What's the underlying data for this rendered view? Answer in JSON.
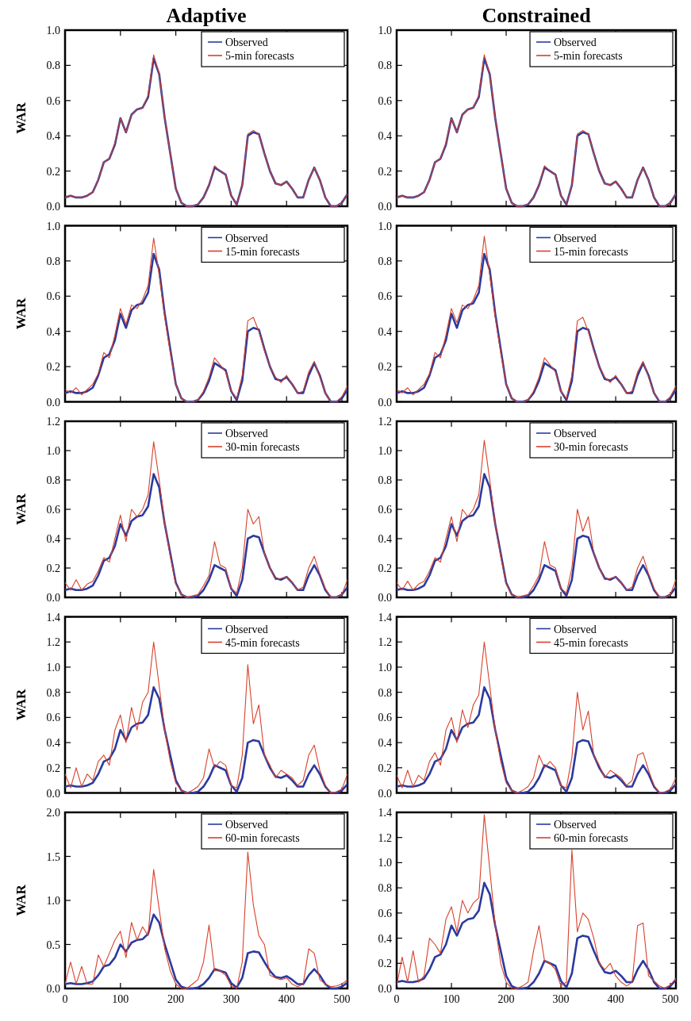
{
  "chart_data": [
    {
      "type": "line",
      "title": "Adaptive",
      "ylabel": "WAR",
      "x": [
        0,
        10,
        20,
        30,
        40,
        50,
        60,
        70,
        80,
        90,
        100,
        110,
        120,
        130,
        140,
        150,
        160,
        170,
        180,
        190,
        200,
        210,
        220,
        230,
        240,
        250,
        260,
        270,
        280,
        290,
        300,
        310,
        320,
        330,
        340,
        350,
        360,
        370,
        380,
        390,
        400,
        410,
        420,
        430,
        440,
        450,
        460,
        470,
        480,
        490,
        500,
        510
      ],
      "xlim": [
        0,
        510
      ],
      "xticks": [
        0,
        100,
        200,
        300,
        400,
        500
      ],
      "ylim": [
        0,
        1.0
      ],
      "yticks": [
        {
          "value": 0,
          "label": "0.0"
        },
        {
          "value": 0.2,
          "label": "0.2"
        },
        {
          "value": 0.4,
          "label": "0.4"
        },
        {
          "value": 0.6,
          "label": "0.6"
        },
        {
          "value": 0.8,
          "label": "0.8"
        },
        {
          "value": 1,
          "label": "1.0"
        }
      ],
      "tick_labels": "y",
      "legend": "top right",
      "series": [
        {
          "name": "Observed",
          "color": "#2b3a9e",
          "values": [
            0.05,
            0.06,
            0.05,
            0.05,
            0.06,
            0.08,
            0.15,
            0.25,
            0.27,
            0.35,
            0.5,
            0.42,
            0.52,
            0.55,
            0.56,
            0.62,
            0.84,
            0.75,
            0.5,
            0.3,
            0.1,
            0.02,
            0.0,
            0.0,
            0.01,
            0.05,
            0.12,
            0.22,
            0.2,
            0.18,
            0.06,
            0.01,
            0.12,
            0.4,
            0.42,
            0.41,
            0.3,
            0.2,
            0.13,
            0.12,
            0.14,
            0.1,
            0.05,
            0.05,
            0.15,
            0.22,
            0.15,
            0.05,
            0.0,
            0.0,
            0.02,
            0.07
          ]
        },
        {
          "name": "5-min forecasts",
          "color": "#d8412a",
          "values": [
            0.05,
            0.06,
            0.05,
            0.05,
            0.06,
            0.08,
            0.15,
            0.25,
            0.27,
            0.36,
            0.5,
            0.42,
            0.52,
            0.55,
            0.56,
            0.63,
            0.86,
            0.75,
            0.5,
            0.3,
            0.1,
            0.02,
            0.0,
            0.0,
            0.01,
            0.05,
            0.12,
            0.23,
            0.2,
            0.18,
            0.06,
            0.01,
            0.12,
            0.41,
            0.43,
            0.41,
            0.3,
            0.2,
            0.13,
            0.12,
            0.14,
            0.1,
            0.05,
            0.05,
            0.15,
            0.22,
            0.15,
            0.05,
            0.0,
            0.0,
            0.02,
            0.07
          ]
        }
      ]
    },
    {
      "type": "line",
      "title": "Constrained",
      "x": [
        0,
        10,
        20,
        30,
        40,
        50,
        60,
        70,
        80,
        90,
        100,
        110,
        120,
        130,
        140,
        150,
        160,
        170,
        180,
        190,
        200,
        210,
        220,
        230,
        240,
        250,
        260,
        270,
        280,
        290,
        300,
        310,
        320,
        330,
        340,
        350,
        360,
        370,
        380,
        390,
        400,
        410,
        420,
        430,
        440,
        450,
        460,
        470,
        480,
        490,
        500,
        510
      ],
      "xlim": [
        0,
        510
      ],
      "xticks": [
        0,
        100,
        200,
        300,
        400,
        500
      ],
      "ylim": [
        0,
        1.0
      ],
      "yticks": [
        {
          "value": 0,
          "label": "0.0"
        },
        {
          "value": 0.2,
          "label": "0.2"
        },
        {
          "value": 0.4,
          "label": "0.4"
        },
        {
          "value": 0.6,
          "label": "0.6"
        },
        {
          "value": 0.8,
          "label": "0.8"
        },
        {
          "value": 1,
          "label": "1.0"
        }
      ],
      "tick_labels": "y",
      "legend": "top right",
      "series": [
        {
          "name": "Observed",
          "color": "#2b3a9e",
          "values": [
            0.05,
            0.06,
            0.05,
            0.05,
            0.06,
            0.08,
            0.15,
            0.25,
            0.27,
            0.35,
            0.5,
            0.42,
            0.52,
            0.55,
            0.56,
            0.62,
            0.84,
            0.75,
            0.5,
            0.3,
            0.1,
            0.02,
            0.0,
            0.0,
            0.01,
            0.05,
            0.12,
            0.22,
            0.2,
            0.18,
            0.06,
            0.01,
            0.12,
            0.4,
            0.42,
            0.41,
            0.3,
            0.2,
            0.13,
            0.12,
            0.14,
            0.1,
            0.05,
            0.05,
            0.15,
            0.22,
            0.15,
            0.05,
            0.0,
            0.0,
            0.02,
            0.07
          ]
        },
        {
          "name": "5-min forecasts",
          "color": "#d8412a",
          "values": [
            0.05,
            0.06,
            0.05,
            0.05,
            0.06,
            0.08,
            0.15,
            0.25,
            0.27,
            0.36,
            0.5,
            0.42,
            0.52,
            0.55,
            0.56,
            0.63,
            0.86,
            0.75,
            0.5,
            0.3,
            0.1,
            0.02,
            0.0,
            0.0,
            0.01,
            0.05,
            0.12,
            0.23,
            0.2,
            0.18,
            0.06,
            0.01,
            0.12,
            0.41,
            0.43,
            0.41,
            0.3,
            0.2,
            0.13,
            0.12,
            0.14,
            0.1,
            0.05,
            0.05,
            0.15,
            0.22,
            0.15,
            0.05,
            0.0,
            0.0,
            0.02,
            0.07
          ]
        }
      ]
    },
    {
      "type": "line",
      "ylabel": "WAR",
      "x": [
        0,
        10,
        20,
        30,
        40,
        50,
        60,
        70,
        80,
        90,
        100,
        110,
        120,
        130,
        140,
        150,
        160,
        170,
        180,
        190,
        200,
        210,
        220,
        230,
        240,
        250,
        260,
        270,
        280,
        290,
        300,
        310,
        320,
        330,
        340,
        350,
        360,
        370,
        380,
        390,
        400,
        410,
        420,
        430,
        440,
        450,
        460,
        470,
        480,
        490,
        500,
        510
      ],
      "xlim": [
        0,
        510
      ],
      "xticks": [
        0,
        100,
        200,
        300,
        400,
        500
      ],
      "ylim": [
        0,
        1.0
      ],
      "yticks": [
        {
          "value": 0,
          "label": "0.0"
        },
        {
          "value": 0.2,
          "label": "0.2"
        },
        {
          "value": 0.4,
          "label": "0.4"
        },
        {
          "value": 0.6,
          "label": "0.6"
        },
        {
          "value": 0.8,
          "label": "0.8"
        },
        {
          "value": 1,
          "label": "1.0"
        }
      ],
      "tick_labels": "y",
      "legend": "top right",
      "series": [
        {
          "name": "Observed",
          "color": "#2b3a9e",
          "values": [
            0.05,
            0.06,
            0.05,
            0.05,
            0.06,
            0.08,
            0.15,
            0.25,
            0.27,
            0.35,
            0.5,
            0.42,
            0.52,
            0.55,
            0.56,
            0.62,
            0.84,
            0.75,
            0.5,
            0.3,
            0.1,
            0.02,
            0.0,
            0.0,
            0.01,
            0.05,
            0.12,
            0.22,
            0.2,
            0.18,
            0.06,
            0.01,
            0.12,
            0.4,
            0.42,
            0.41,
            0.3,
            0.2,
            0.13,
            0.12,
            0.14,
            0.1,
            0.05,
            0.05,
            0.15,
            0.22,
            0.15,
            0.05,
            0.0,
            0.0,
            0.02,
            0.07
          ]
        },
        {
          "name": "15-min forecasts",
          "color": "#d8412a",
          "values": [
            0.07,
            0.05,
            0.08,
            0.04,
            0.07,
            0.1,
            0.16,
            0.28,
            0.25,
            0.38,
            0.53,
            0.44,
            0.55,
            0.53,
            0.58,
            0.66,
            0.93,
            0.72,
            0.48,
            0.28,
            0.1,
            0.02,
            0.0,
            0.0,
            0.01,
            0.06,
            0.14,
            0.25,
            0.21,
            0.17,
            0.06,
            0.02,
            0.15,
            0.46,
            0.48,
            0.4,
            0.29,
            0.2,
            0.14,
            0.11,
            0.15,
            0.1,
            0.05,
            0.06,
            0.17,
            0.23,
            0.14,
            0.05,
            0.0,
            0.0,
            0.03,
            0.09
          ]
        }
      ]
    },
    {
      "type": "line",
      "x": [
        0,
        10,
        20,
        30,
        40,
        50,
        60,
        70,
        80,
        90,
        100,
        110,
        120,
        130,
        140,
        150,
        160,
        170,
        180,
        190,
        200,
        210,
        220,
        230,
        240,
        250,
        260,
        270,
        280,
        290,
        300,
        310,
        320,
        330,
        340,
        350,
        360,
        370,
        380,
        390,
        400,
        410,
        420,
        430,
        440,
        450,
        460,
        470,
        480,
        490,
        500,
        510
      ],
      "xlim": [
        0,
        510
      ],
      "xticks": [
        0,
        100,
        200,
        300,
        400,
        500
      ],
      "ylim": [
        0,
        1.0
      ],
      "yticks": [
        {
          "value": 0,
          "label": "0.0"
        },
        {
          "value": 0.2,
          "label": "0.2"
        },
        {
          "value": 0.4,
          "label": "0.4"
        },
        {
          "value": 0.6,
          "label": "0.6"
        },
        {
          "value": 0.8,
          "label": "0.8"
        },
        {
          "value": 1,
          "label": "1.0"
        }
      ],
      "tick_labels": "y",
      "legend": "top right",
      "series": [
        {
          "name": "Observed",
          "color": "#2b3a9e",
          "values": [
            0.05,
            0.06,
            0.05,
            0.05,
            0.06,
            0.08,
            0.15,
            0.25,
            0.27,
            0.35,
            0.5,
            0.42,
            0.52,
            0.55,
            0.56,
            0.62,
            0.84,
            0.75,
            0.5,
            0.3,
            0.1,
            0.02,
            0.0,
            0.0,
            0.01,
            0.05,
            0.12,
            0.22,
            0.2,
            0.18,
            0.06,
            0.01,
            0.12,
            0.4,
            0.42,
            0.41,
            0.3,
            0.2,
            0.13,
            0.12,
            0.14,
            0.1,
            0.05,
            0.05,
            0.15,
            0.22,
            0.15,
            0.05,
            0.0,
            0.0,
            0.02,
            0.07
          ]
        },
        {
          "name": "15-min forecasts",
          "color": "#d8412a",
          "values": [
            0.07,
            0.05,
            0.08,
            0.04,
            0.07,
            0.1,
            0.16,
            0.28,
            0.25,
            0.38,
            0.53,
            0.45,
            0.55,
            0.53,
            0.58,
            0.66,
            0.94,
            0.72,
            0.48,
            0.28,
            0.1,
            0.02,
            0.0,
            0.0,
            0.01,
            0.06,
            0.14,
            0.25,
            0.21,
            0.17,
            0.06,
            0.02,
            0.15,
            0.46,
            0.48,
            0.4,
            0.29,
            0.2,
            0.14,
            0.11,
            0.15,
            0.1,
            0.05,
            0.06,
            0.17,
            0.23,
            0.14,
            0.05,
            0.0,
            0.0,
            0.03,
            0.09
          ]
        }
      ]
    },
    {
      "type": "line",
      "ylabel": "WAR",
      "x": [
        0,
        10,
        20,
        30,
        40,
        50,
        60,
        70,
        80,
        90,
        100,
        110,
        120,
        130,
        140,
        150,
        160,
        170,
        180,
        190,
        200,
        210,
        220,
        230,
        240,
        250,
        260,
        270,
        280,
        290,
        300,
        310,
        320,
        330,
        340,
        350,
        360,
        370,
        380,
        390,
        400,
        410,
        420,
        430,
        440,
        450,
        460,
        470,
        480,
        490,
        500,
        510
      ],
      "xlim": [
        0,
        510
      ],
      "xticks": [
        0,
        100,
        200,
        300,
        400,
        500
      ],
      "ylim": [
        0,
        1.2
      ],
      "yticks": [
        {
          "value": 0,
          "label": "0.0"
        },
        {
          "value": 0.2,
          "label": "0.2"
        },
        {
          "value": 0.4,
          "label": "0.4"
        },
        {
          "value": 0.6,
          "label": "0.6"
        },
        {
          "value": 0.8,
          "label": "0.8"
        },
        {
          "value": 1,
          "label": "1.0"
        },
        {
          "value": 1.2,
          "label": "1.2"
        }
      ],
      "tick_labels": "y",
      "legend": "top right",
      "series": [
        {
          "name": "Observed",
          "color": "#2b3a9e",
          "values": [
            0.05,
            0.06,
            0.05,
            0.05,
            0.06,
            0.08,
            0.15,
            0.25,
            0.27,
            0.35,
            0.5,
            0.42,
            0.52,
            0.55,
            0.56,
            0.62,
            0.84,
            0.75,
            0.5,
            0.3,
            0.1,
            0.02,
            0.0,
            0.0,
            0.01,
            0.05,
            0.12,
            0.22,
            0.2,
            0.18,
            0.06,
            0.01,
            0.12,
            0.4,
            0.42,
            0.41,
            0.3,
            0.2,
            0.13,
            0.12,
            0.14,
            0.1,
            0.05,
            0.05,
            0.15,
            0.22,
            0.15,
            0.05,
            0.0,
            0.0,
            0.02,
            0.07
          ]
        },
        {
          "name": "30-min forecasts",
          "color": "#d8412a",
          "values": [
            0.1,
            0.05,
            0.12,
            0.05,
            0.09,
            0.11,
            0.18,
            0.27,
            0.24,
            0.4,
            0.56,
            0.38,
            0.6,
            0.55,
            0.6,
            0.7,
            1.06,
            0.8,
            0.5,
            0.28,
            0.09,
            0.02,
            0.0,
            0.01,
            0.02,
            0.08,
            0.15,
            0.38,
            0.22,
            0.2,
            0.06,
            0.03,
            0.2,
            0.6,
            0.5,
            0.55,
            0.3,
            0.2,
            0.12,
            0.13,
            0.14,
            0.1,
            0.05,
            0.07,
            0.2,
            0.28,
            0.16,
            0.06,
            0.0,
            0.0,
            0.02,
            0.12
          ]
        }
      ]
    },
    {
      "type": "line",
      "x": [
        0,
        10,
        20,
        30,
        40,
        50,
        60,
        70,
        80,
        90,
        100,
        110,
        120,
        130,
        140,
        150,
        160,
        170,
        180,
        190,
        200,
        210,
        220,
        230,
        240,
        250,
        260,
        270,
        280,
        290,
        300,
        310,
        320,
        330,
        340,
        350,
        360,
        370,
        380,
        390,
        400,
        410,
        420,
        430,
        440,
        450,
        460,
        470,
        480,
        490,
        500,
        510
      ],
      "xlim": [
        0,
        510
      ],
      "xticks": [
        0,
        100,
        200,
        300,
        400,
        500
      ],
      "ylim": [
        0,
        1.2
      ],
      "yticks": [
        {
          "value": 0,
          "label": "0.0"
        },
        {
          "value": 0.2,
          "label": "0.2"
        },
        {
          "value": 0.4,
          "label": "0.4"
        },
        {
          "value": 0.6,
          "label": "0.6"
        },
        {
          "value": 0.8,
          "label": "0.8"
        },
        {
          "value": 1,
          "label": "1.0"
        },
        {
          "value": 1.2,
          "label": "1.2"
        }
      ],
      "tick_labels": "y",
      "legend": "top right",
      "series": [
        {
          "name": "Observed",
          "color": "#2b3a9e",
          "values": [
            0.05,
            0.06,
            0.05,
            0.05,
            0.06,
            0.08,
            0.15,
            0.25,
            0.27,
            0.35,
            0.5,
            0.42,
            0.52,
            0.55,
            0.56,
            0.62,
            0.84,
            0.75,
            0.5,
            0.3,
            0.1,
            0.02,
            0.0,
            0.0,
            0.01,
            0.05,
            0.12,
            0.22,
            0.2,
            0.18,
            0.06,
            0.01,
            0.12,
            0.4,
            0.42,
            0.41,
            0.3,
            0.2,
            0.13,
            0.12,
            0.14,
            0.1,
            0.05,
            0.05,
            0.15,
            0.22,
            0.15,
            0.05,
            0.0,
            0.0,
            0.02,
            0.07
          ]
        },
        {
          "name": "30-min forecasts",
          "color": "#d8412a",
          "values": [
            0.1,
            0.05,
            0.11,
            0.05,
            0.09,
            0.11,
            0.18,
            0.27,
            0.24,
            0.4,
            0.55,
            0.38,
            0.6,
            0.55,
            0.6,
            0.7,
            1.07,
            0.8,
            0.5,
            0.28,
            0.09,
            0.02,
            0.0,
            0.01,
            0.02,
            0.08,
            0.15,
            0.38,
            0.22,
            0.2,
            0.06,
            0.03,
            0.2,
            0.6,
            0.45,
            0.55,
            0.3,
            0.2,
            0.12,
            0.13,
            0.14,
            0.1,
            0.05,
            0.07,
            0.2,
            0.28,
            0.16,
            0.06,
            0.0,
            0.0,
            0.02,
            0.12
          ]
        }
      ]
    },
    {
      "type": "line",
      "ylabel": "WAR",
      "x": [
        0,
        10,
        20,
        30,
        40,
        50,
        60,
        70,
        80,
        90,
        100,
        110,
        120,
        130,
        140,
        150,
        160,
        170,
        180,
        190,
        200,
        210,
        220,
        230,
        240,
        250,
        260,
        270,
        280,
        290,
        300,
        310,
        320,
        330,
        340,
        350,
        360,
        370,
        380,
        390,
        400,
        410,
        420,
        430,
        440,
        450,
        460,
        470,
        480,
        490,
        500,
        510
      ],
      "xlim": [
        0,
        510
      ],
      "xticks": [
        0,
        100,
        200,
        300,
        400,
        500
      ],
      "ylim": [
        0,
        1.4
      ],
      "yticks": [
        {
          "value": 0,
          "label": "0.0"
        },
        {
          "value": 0.2,
          "label": "0.2"
        },
        {
          "value": 0.4,
          "label": "0.4"
        },
        {
          "value": 0.6,
          "label": "0.6"
        },
        {
          "value": 0.8,
          "label": "0.8"
        },
        {
          "value": 1,
          "label": "1.0"
        },
        {
          "value": 1.2,
          "label": "1.2"
        },
        {
          "value": 1.4,
          "label": "1.4"
        }
      ],
      "tick_labels": "y",
      "legend": "top right",
      "series": [
        {
          "name": "Observed",
          "color": "#2b3a9e",
          "values": [
            0.05,
            0.06,
            0.05,
            0.05,
            0.06,
            0.08,
            0.15,
            0.25,
            0.27,
            0.35,
            0.5,
            0.42,
            0.52,
            0.55,
            0.56,
            0.62,
            0.84,
            0.75,
            0.5,
            0.3,
            0.1,
            0.02,
            0.0,
            0.0,
            0.01,
            0.05,
            0.12,
            0.22,
            0.2,
            0.18,
            0.06,
            0.01,
            0.12,
            0.4,
            0.42,
            0.41,
            0.3,
            0.2,
            0.13,
            0.12,
            0.14,
            0.1,
            0.05,
            0.05,
            0.15,
            0.22,
            0.15,
            0.05,
            0.0,
            0.0,
            0.02,
            0.07
          ]
        },
        {
          "name": "45-min forecasts",
          "color": "#d8412a",
          "values": [
            0.15,
            0.04,
            0.2,
            0.05,
            0.15,
            0.1,
            0.25,
            0.3,
            0.22,
            0.5,
            0.62,
            0.4,
            0.68,
            0.5,
            0.72,
            0.8,
            1.2,
            0.85,
            0.5,
            0.25,
            0.08,
            0.02,
            0.0,
            0.02,
            0.05,
            0.12,
            0.35,
            0.2,
            0.25,
            0.22,
            0.06,
            0.04,
            0.3,
            1.02,
            0.55,
            0.7,
            0.3,
            0.22,
            0.12,
            0.18,
            0.15,
            0.12,
            0.06,
            0.1,
            0.3,
            0.38,
            0.18,
            0.06,
            0.0,
            0.01,
            0.03,
            0.15
          ]
        }
      ]
    },
    {
      "type": "line",
      "x": [
        0,
        10,
        20,
        30,
        40,
        50,
        60,
        70,
        80,
        90,
        100,
        110,
        120,
        130,
        140,
        150,
        160,
        170,
        180,
        190,
        200,
        210,
        220,
        230,
        240,
        250,
        260,
        270,
        280,
        290,
        300,
        310,
        320,
        330,
        340,
        350,
        360,
        370,
        380,
        390,
        400,
        410,
        420,
        430,
        440,
        450,
        460,
        470,
        480,
        490,
        500,
        510
      ],
      "xlim": [
        0,
        510
      ],
      "xticks": [
        0,
        100,
        200,
        300,
        400,
        500
      ],
      "ylim": [
        0,
        1.4
      ],
      "yticks": [
        {
          "value": 0,
          "label": "0.0"
        },
        {
          "value": 0.2,
          "label": "0.2"
        },
        {
          "value": 0.4,
          "label": "0.4"
        },
        {
          "value": 0.6,
          "label": "0.6"
        },
        {
          "value": 0.8,
          "label": "0.8"
        },
        {
          "value": 1,
          "label": "1.0"
        },
        {
          "value": 1.2,
          "label": "1.2"
        },
        {
          "value": 1.4,
          "label": "1.4"
        }
      ],
      "tick_labels": "y",
      "legend": "top right",
      "series": [
        {
          "name": "Observed",
          "color": "#2b3a9e",
          "values": [
            0.05,
            0.06,
            0.05,
            0.05,
            0.06,
            0.08,
            0.15,
            0.25,
            0.27,
            0.35,
            0.5,
            0.42,
            0.52,
            0.55,
            0.56,
            0.62,
            0.84,
            0.75,
            0.5,
            0.3,
            0.1,
            0.02,
            0.0,
            0.0,
            0.01,
            0.05,
            0.12,
            0.22,
            0.2,
            0.18,
            0.06,
            0.01,
            0.12,
            0.4,
            0.42,
            0.41,
            0.3,
            0.2,
            0.13,
            0.12,
            0.14,
            0.1,
            0.05,
            0.05,
            0.15,
            0.22,
            0.15,
            0.05,
            0.0,
            0.0,
            0.02,
            0.07
          ]
        },
        {
          "name": "45-min forecasts",
          "color": "#d8412a",
          "values": [
            0.14,
            0.04,
            0.18,
            0.05,
            0.14,
            0.1,
            0.25,
            0.32,
            0.22,
            0.5,
            0.6,
            0.4,
            0.66,
            0.52,
            0.7,
            0.78,
            1.2,
            0.85,
            0.5,
            0.25,
            0.08,
            0.02,
            0.0,
            0.02,
            0.05,
            0.12,
            0.3,
            0.2,
            0.25,
            0.2,
            0.06,
            0.04,
            0.28,
            0.8,
            0.5,
            0.65,
            0.3,
            0.22,
            0.12,
            0.18,
            0.15,
            0.12,
            0.06,
            0.1,
            0.3,
            0.32,
            0.18,
            0.06,
            0.0,
            0.01,
            0.03,
            0.12
          ]
        }
      ]
    },
    {
      "type": "line",
      "ylabel": "WAR",
      "x": [
        0,
        10,
        20,
        30,
        40,
        50,
        60,
        70,
        80,
        90,
        100,
        110,
        120,
        130,
        140,
        150,
        160,
        170,
        180,
        190,
        200,
        210,
        220,
        230,
        240,
        250,
        260,
        270,
        280,
        290,
        300,
        310,
        320,
        330,
        340,
        350,
        360,
        370,
        380,
        390,
        400,
        410,
        420,
        430,
        440,
        450,
        460,
        470,
        480,
        490,
        500,
        510
      ],
      "xlim": [
        0,
        510
      ],
      "xticks": [
        0,
        100,
        200,
        300,
        400,
        500
      ],
      "ylim": [
        0,
        2.0
      ],
      "yticks": [
        {
          "value": 0,
          "label": "0.0"
        },
        {
          "value": 0.5,
          "label": "0.5"
        },
        {
          "value": 1,
          "label": "1.0"
        },
        {
          "value": 1.5,
          "label": "1.5"
        },
        {
          "value": 2,
          "label": "2.0"
        }
      ],
      "legend": "top right",
      "series": [
        {
          "name": "Observed",
          "color": "#2b3a9e",
          "values": [
            0.05,
            0.06,
            0.05,
            0.05,
            0.06,
            0.08,
            0.15,
            0.25,
            0.27,
            0.35,
            0.5,
            0.42,
            0.52,
            0.55,
            0.56,
            0.62,
            0.84,
            0.75,
            0.5,
            0.3,
            0.1,
            0.02,
            0.0,
            0.0,
            0.01,
            0.05,
            0.12,
            0.22,
            0.2,
            0.18,
            0.06,
            0.01,
            0.12,
            0.4,
            0.42,
            0.41,
            0.3,
            0.2,
            0.13,
            0.12,
            0.14,
            0.1,
            0.05,
            0.05,
            0.15,
            0.22,
            0.15,
            0.05,
            0.0,
            0.0,
            0.02,
            0.07
          ]
        },
        {
          "name": "60-min forecasts",
          "color": "#d8412a",
          "values": [
            0.05,
            0.3,
            0.05,
            0.25,
            0.05,
            0.05,
            0.38,
            0.25,
            0.4,
            0.55,
            0.65,
            0.35,
            0.75,
            0.55,
            0.7,
            0.6,
            1.35,
            0.9,
            0.45,
            0.2,
            0.05,
            0.0,
            0.0,
            0.05,
            0.1,
            0.3,
            0.72,
            0.2,
            0.2,
            0.15,
            0.03,
            0.0,
            0.3,
            1.55,
            0.95,
            0.6,
            0.5,
            0.15,
            0.12,
            0.1,
            0.12,
            0.05,
            0.02,
            0.05,
            0.45,
            0.4,
            0.1,
            0.05,
            0.02,
            0.03,
            0.05,
            0.1
          ]
        }
      ]
    },
    {
      "type": "line",
      "x": [
        0,
        10,
        20,
        30,
        40,
        50,
        60,
        70,
        80,
        90,
        100,
        110,
        120,
        130,
        140,
        150,
        160,
        170,
        180,
        190,
        200,
        210,
        220,
        230,
        240,
        250,
        260,
        270,
        280,
        290,
        300,
        310,
        320,
        330,
        340,
        350,
        360,
        370,
        380,
        390,
        400,
        410,
        420,
        430,
        440,
        450,
        460,
        470,
        480,
        490,
        500,
        510
      ],
      "xlim": [
        0,
        510
      ],
      "xticks": [
        0,
        100,
        200,
        300,
        400,
        500
      ],
      "ylim": [
        0,
        1.4
      ],
      "yticks": [
        {
          "value": 0,
          "label": "0.0"
        },
        {
          "value": 0.2,
          "label": "0.2"
        },
        {
          "value": 0.4,
          "label": "0.4"
        },
        {
          "value": 0.6,
          "label": "0.6"
        },
        {
          "value": 0.8,
          "label": "0.8"
        },
        {
          "value": 1,
          "label": "1.0"
        },
        {
          "value": 1.2,
          "label": "1.2"
        },
        {
          "value": 1.4,
          "label": "1.4"
        }
      ],
      "legend": "top right",
      "series": [
        {
          "name": "Observed",
          "color": "#2b3a9e",
          "values": [
            0.05,
            0.06,
            0.05,
            0.05,
            0.06,
            0.08,
            0.15,
            0.25,
            0.27,
            0.35,
            0.5,
            0.42,
            0.52,
            0.55,
            0.56,
            0.62,
            0.84,
            0.75,
            0.5,
            0.3,
            0.1,
            0.02,
            0.0,
            0.0,
            0.01,
            0.05,
            0.12,
            0.22,
            0.2,
            0.18,
            0.06,
            0.01,
            0.12,
            0.4,
            0.42,
            0.41,
            0.3,
            0.2,
            0.13,
            0.12,
            0.14,
            0.1,
            0.05,
            0.05,
            0.15,
            0.22,
            0.15,
            0.05,
            0.0,
            0.0,
            0.02,
            0.07
          ]
        },
        {
          "name": "60-min forecasts",
          "color": "#d8412a",
          "values": [
            0.02,
            0.25,
            0.05,
            0.3,
            0.05,
            0.1,
            0.4,
            0.35,
            0.28,
            0.55,
            0.65,
            0.45,
            0.7,
            0.6,
            0.68,
            0.72,
            1.38,
            0.95,
            0.5,
            0.2,
            0.05,
            0.0,
            0.0,
            0.02,
            0.05,
            0.3,
            0.5,
            0.22,
            0.2,
            0.15,
            0.02,
            0.05,
            1.1,
            0.45,
            0.6,
            0.55,
            0.4,
            0.2,
            0.15,
            0.2,
            0.1,
            0.05,
            0.02,
            0.05,
            0.5,
            0.52,
            0.1,
            0.06,
            0.02,
            0.0,
            0.03,
            0.08
          ]
        }
      ]
    }
  ]
}
